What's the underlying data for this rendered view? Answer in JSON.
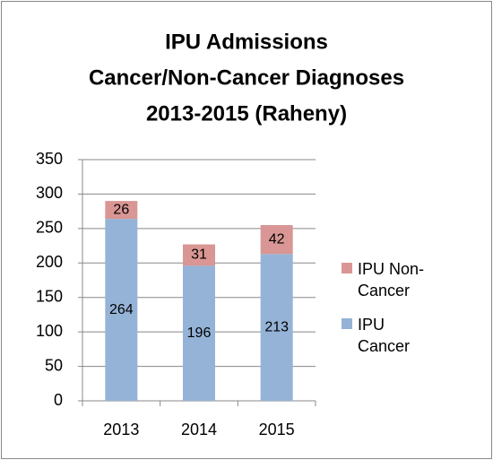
{
  "chart_data": {
    "type": "stacked_bar",
    "title": [
      "IPU Admissions",
      "Cancer/Non-Cancer Diagnoses",
      "2013-2015 (Raheny)"
    ],
    "categories": [
      "2013",
      "2014",
      "2015"
    ],
    "series": [
      {
        "name": "IPU Cancer",
        "color": "#95b3d7",
        "values": [
          264,
          196,
          213
        ]
      },
      {
        "name": "IPU Non-Cancer",
        "color": "#d99694",
        "values": [
          26,
          31,
          42
        ]
      }
    ],
    "ylim": [
      0,
      350
    ],
    "yticks": [
      0,
      50,
      100,
      150,
      200,
      250,
      300,
      350
    ],
    "grid": true,
    "legend": "right"
  }
}
